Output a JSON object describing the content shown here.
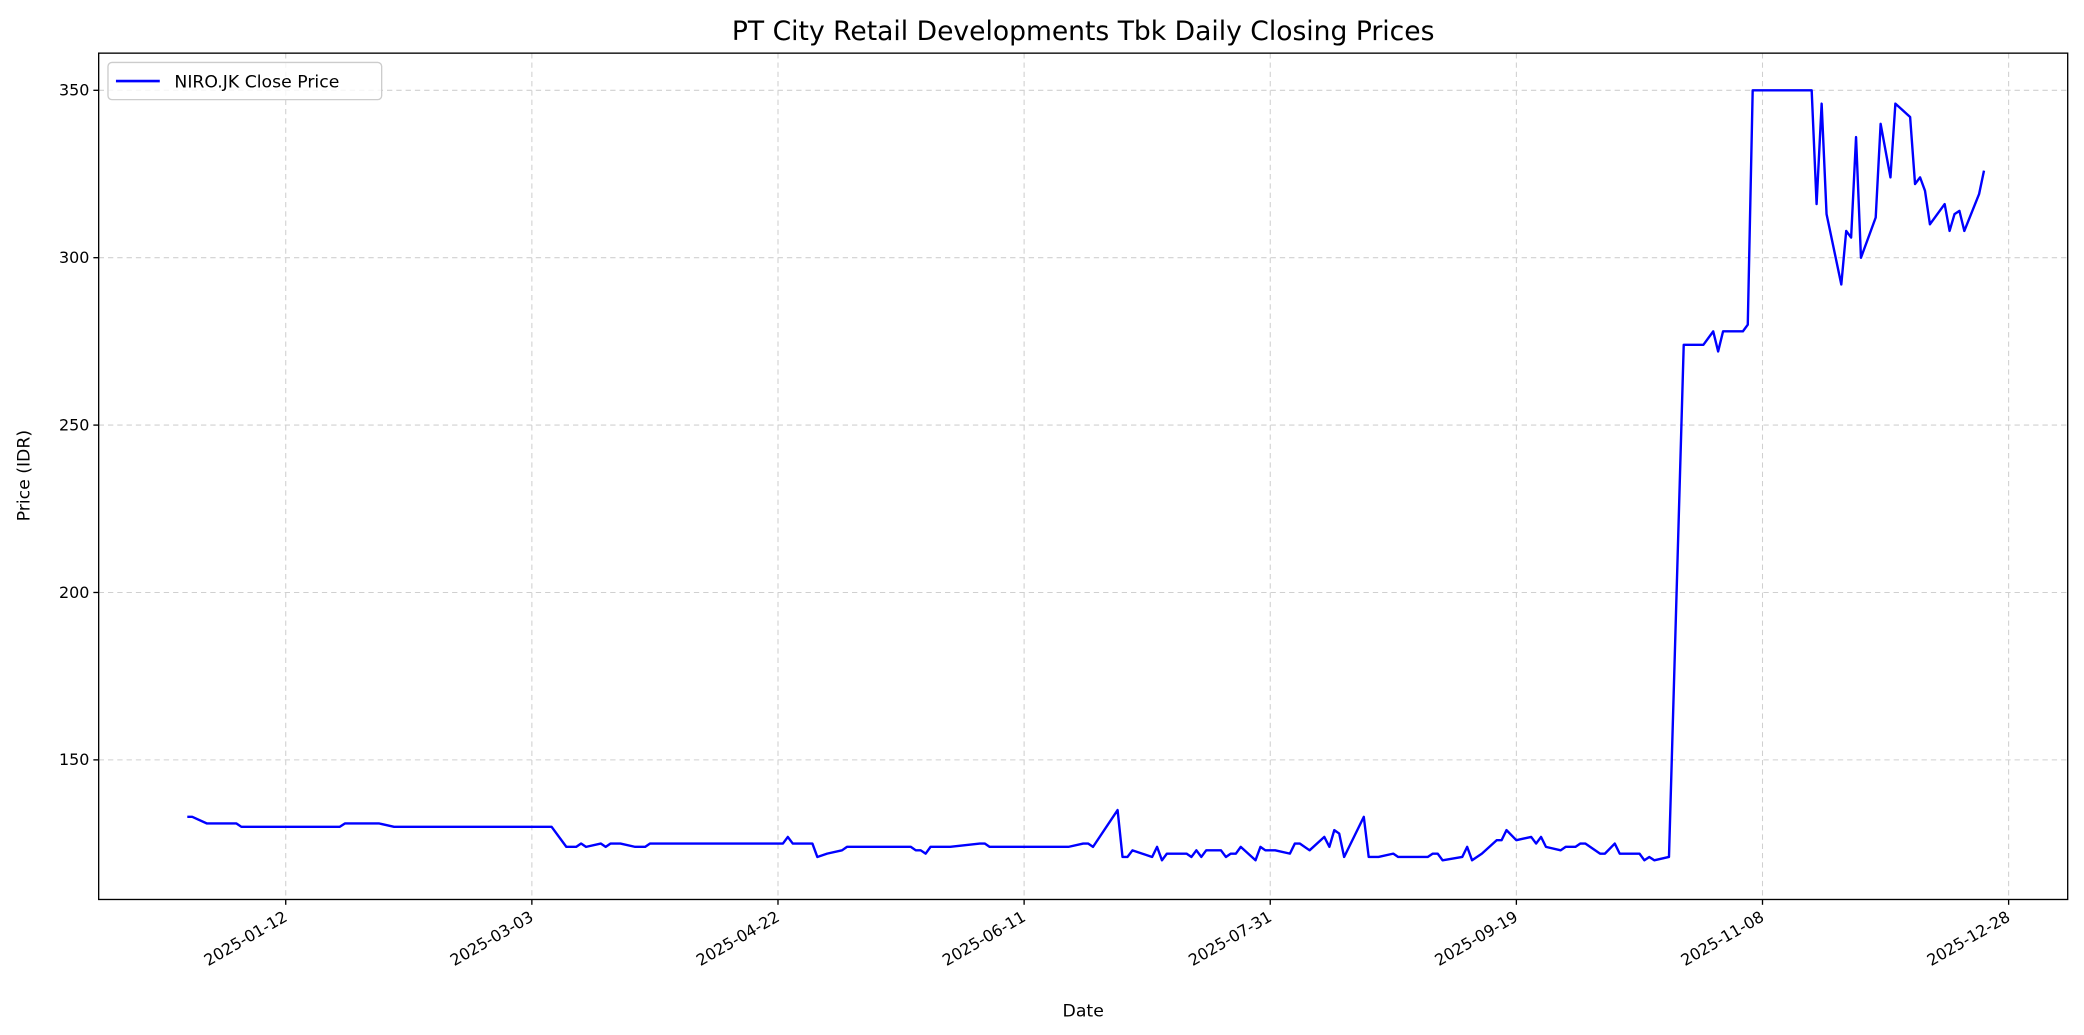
{
  "chart_data": {
    "type": "line",
    "title": "PT City Retail Developments Tbk Daily Closing Prices",
    "xlabel": "Date",
    "ylabel": "Price (IDR)",
    "xlim": [
      "2024-12-05",
      "2026-01-09"
    ],
    "ylim": [
      108.3,
      361.1
    ],
    "grid": true,
    "legend_position": "top-left",
    "x_ticks": [
      "2025-01-12",
      "2025-03-03",
      "2025-04-22",
      "2025-06-11",
      "2025-07-31",
      "2025-09-19",
      "2025-11-08",
      "2025-12-28"
    ],
    "y_ticks": [
      150,
      200,
      250,
      300,
      350
    ],
    "series": [
      {
        "name": "NIRO.JK Close Price",
        "color": "#0000ff",
        "points": [
          [
            "2024-12-23",
            133
          ],
          [
            "2024-12-24",
            133
          ],
          [
            "2024-12-27",
            131
          ],
          [
            "2025-01-02",
            131
          ],
          [
            "2025-01-03",
            130
          ],
          [
            "2025-01-23",
            130
          ],
          [
            "2025-01-24",
            131
          ],
          [
            "2025-01-31",
            131
          ],
          [
            "2025-02-03",
            130
          ],
          [
            "2025-03-07",
            130
          ],
          [
            "2025-03-10",
            124
          ],
          [
            "2025-03-12",
            124
          ],
          [
            "2025-03-13",
            125
          ],
          [
            "2025-03-14",
            124
          ],
          [
            "2025-03-17",
            125
          ],
          [
            "2025-03-18",
            124
          ],
          [
            "2025-03-19",
            125
          ],
          [
            "2025-03-21",
            125
          ],
          [
            "2025-03-24",
            124
          ],
          [
            "2025-03-26",
            124
          ],
          [
            "2025-03-27",
            125
          ],
          [
            "2025-04-23",
            125
          ],
          [
            "2025-04-24",
            127
          ],
          [
            "2025-04-25",
            125
          ],
          [
            "2025-04-29",
            125
          ],
          [
            "2025-04-30",
            121
          ],
          [
            "2025-05-02",
            122
          ],
          [
            "2025-05-05",
            123
          ],
          [
            "2025-05-06",
            124
          ],
          [
            "2025-05-19",
            124
          ],
          [
            "2025-05-20",
            123
          ],
          [
            "2025-05-21",
            123
          ],
          [
            "2025-05-22",
            122
          ],
          [
            "2025-05-23",
            124
          ],
          [
            "2025-05-27",
            124
          ],
          [
            "2025-06-02",
            125
          ],
          [
            "2025-06-03",
            125
          ],
          [
            "2025-06-04",
            124
          ],
          [
            "2025-06-20",
            124
          ],
          [
            "2025-06-23",
            125
          ],
          [
            "2025-06-24",
            125
          ],
          [
            "2025-06-25",
            124
          ],
          [
            "2025-06-30",
            135
          ],
          [
            "2025-07-01",
            121
          ],
          [
            "2025-07-02",
            121
          ],
          [
            "2025-07-03",
            123
          ],
          [
            "2025-07-07",
            121
          ],
          [
            "2025-07-08",
            124
          ],
          [
            "2025-07-09",
            120
          ],
          [
            "2025-07-10",
            122
          ],
          [
            "2025-07-14",
            122
          ],
          [
            "2025-07-15",
            121
          ],
          [
            "2025-07-16",
            123
          ],
          [
            "2025-07-17",
            121
          ],
          [
            "2025-07-18",
            123
          ],
          [
            "2025-07-21",
            123
          ],
          [
            "2025-07-22",
            121
          ],
          [
            "2025-07-23",
            122
          ],
          [
            "2025-07-24",
            122
          ],
          [
            "2025-07-25",
            124
          ],
          [
            "2025-07-28",
            120
          ],
          [
            "2025-07-29",
            124
          ],
          [
            "2025-07-30",
            123
          ],
          [
            "2025-08-01",
            123
          ],
          [
            "2025-08-04",
            122
          ],
          [
            "2025-08-05",
            125
          ],
          [
            "2025-08-06",
            125
          ],
          [
            "2025-08-08",
            123
          ],
          [
            "2025-08-11",
            127
          ],
          [
            "2025-08-12",
            124
          ],
          [
            "2025-08-13",
            129
          ],
          [
            "2025-08-14",
            128
          ],
          [
            "2025-08-15",
            121
          ],
          [
            "2025-08-19",
            133
          ],
          [
            "2025-08-20",
            121
          ],
          [
            "2025-08-22",
            121
          ],
          [
            "2025-08-25",
            122
          ],
          [
            "2025-08-26",
            121
          ],
          [
            "2025-09-01",
            121
          ],
          [
            "2025-09-02",
            122
          ],
          [
            "2025-09-03",
            122
          ],
          [
            "2025-09-04",
            120
          ],
          [
            "2025-09-08",
            121
          ],
          [
            "2025-09-09",
            124
          ],
          [
            "2025-09-10",
            120
          ],
          [
            "2025-09-12",
            122
          ],
          [
            "2025-09-15",
            126
          ],
          [
            "2025-09-16",
            126
          ],
          [
            "2025-09-17",
            129
          ],
          [
            "2025-09-19",
            126
          ],
          [
            "2025-09-22",
            127
          ],
          [
            "2025-09-23",
            125
          ],
          [
            "2025-09-24",
            127
          ],
          [
            "2025-09-25",
            124
          ],
          [
            "2025-09-28",
            123
          ],
          [
            "2025-09-29",
            124
          ],
          [
            "2025-10-01",
            124
          ],
          [
            "2025-10-02",
            125
          ],
          [
            "2025-10-03",
            125
          ],
          [
            "2025-10-06",
            122
          ],
          [
            "2025-10-07",
            122
          ],
          [
            "2025-10-09",
            125
          ],
          [
            "2025-10-10",
            122
          ],
          [
            "2025-10-14",
            122
          ],
          [
            "2025-10-15",
            120
          ],
          [
            "2025-10-16",
            121
          ],
          [
            "2025-10-17",
            120
          ],
          [
            "2025-10-20",
            121
          ],
          [
            "2025-10-23",
            274
          ],
          [
            "2025-10-27",
            274
          ],
          [
            "2025-10-29",
            278
          ],
          [
            "2025-10-30",
            272
          ],
          [
            "2025-10-31",
            278
          ],
          [
            "2025-11-04",
            278
          ],
          [
            "2025-11-05",
            280
          ],
          [
            "2025-11-06",
            350
          ],
          [
            "2025-11-18",
            350
          ],
          [
            "2025-11-19",
            316
          ],
          [
            "2025-11-20",
            346
          ],
          [
            "2025-11-21",
            313
          ],
          [
            "2025-11-24",
            292
          ],
          [
            "2025-11-25",
            308
          ],
          [
            "2025-11-26",
            306
          ],
          [
            "2025-11-27",
            336
          ],
          [
            "2025-11-28",
            300
          ],
          [
            "2025-12-01",
            312
          ],
          [
            "2025-12-02",
            340
          ],
          [
            "2025-12-04",
            324
          ],
          [
            "2025-12-05",
            346
          ],
          [
            "2025-12-08",
            342
          ],
          [
            "2025-12-09",
            322
          ],
          [
            "2025-12-10",
            324
          ],
          [
            "2025-12-11",
            320
          ],
          [
            "2025-12-12",
            310
          ],
          [
            "2025-12-15",
            316
          ],
          [
            "2025-12-16",
            308
          ],
          [
            "2025-12-17",
            313
          ],
          [
            "2025-12-18",
            314
          ],
          [
            "2025-12-19",
            308
          ],
          [
            "2025-12-22",
            319
          ],
          [
            "2025-12-23",
            326
          ]
        ]
      }
    ]
  }
}
